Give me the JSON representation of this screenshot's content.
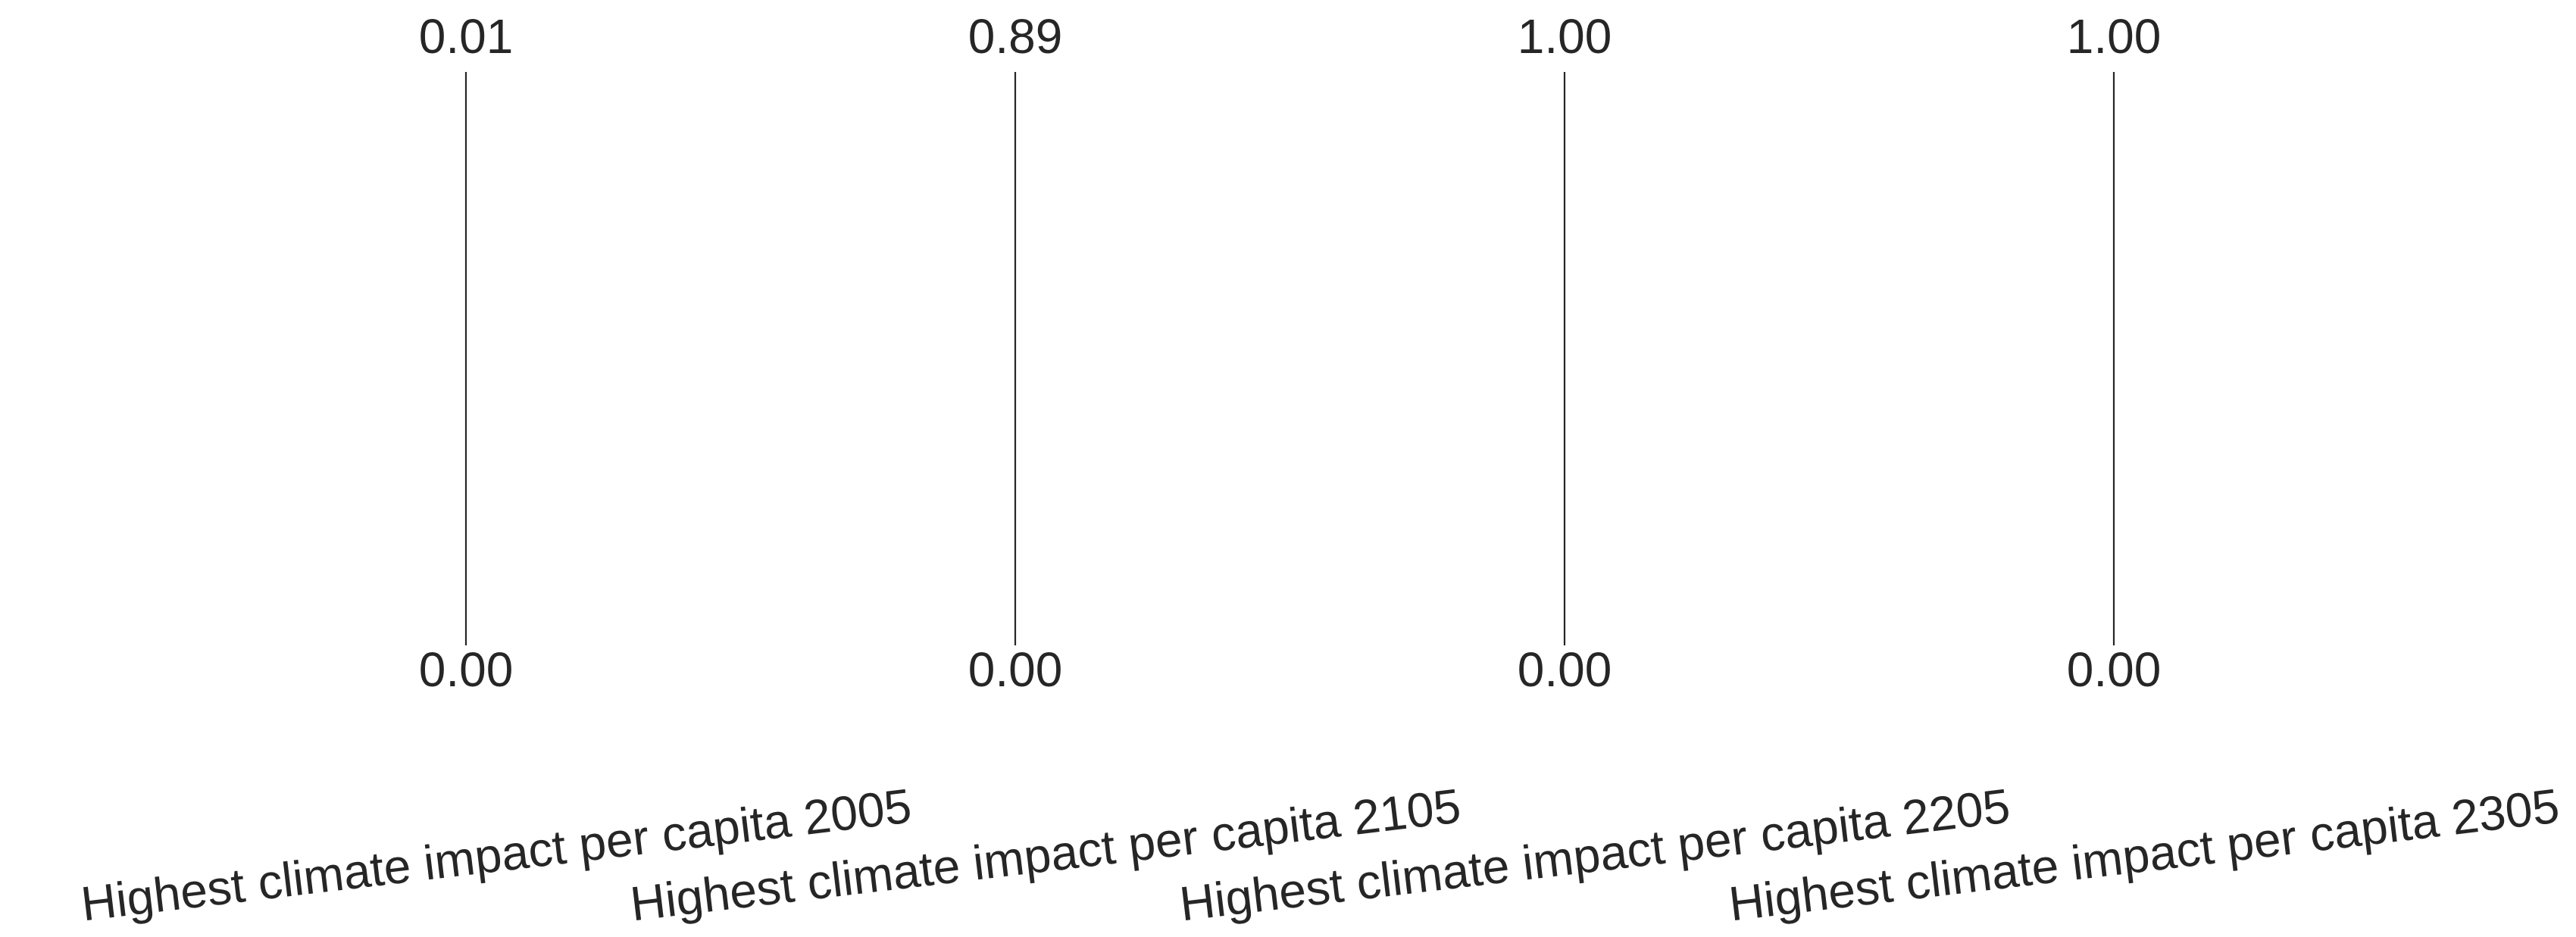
{
  "chart_data": {
    "type": "parallel_coordinates",
    "axes": [
      {
        "label": "Highest climate impact per capita 2005",
        "max_label": "0.01",
        "min_label": "0.00",
        "range": [
          0.0,
          0.01
        ]
      },
      {
        "label": "Highest climate impact per capita 2105",
        "max_label": "0.89",
        "min_label": "0.00",
        "range": [
          0.0,
          0.89
        ]
      },
      {
        "label": "Highest climate impact per capita 2205",
        "max_label": "1.00",
        "min_label": "0.00",
        "range": [
          0.0,
          1.0
        ]
      },
      {
        "label": "Highest climate impact per capita 2305",
        "max_label": "1.00",
        "min_label": "0.00",
        "range": [
          0.0,
          1.0
        ]
      }
    ],
    "series": [],
    "title": "",
    "grid": false,
    "legend": "none",
    "colors": {
      "axis": "#262626",
      "text": "#262626",
      "background": "#ffffff"
    }
  }
}
